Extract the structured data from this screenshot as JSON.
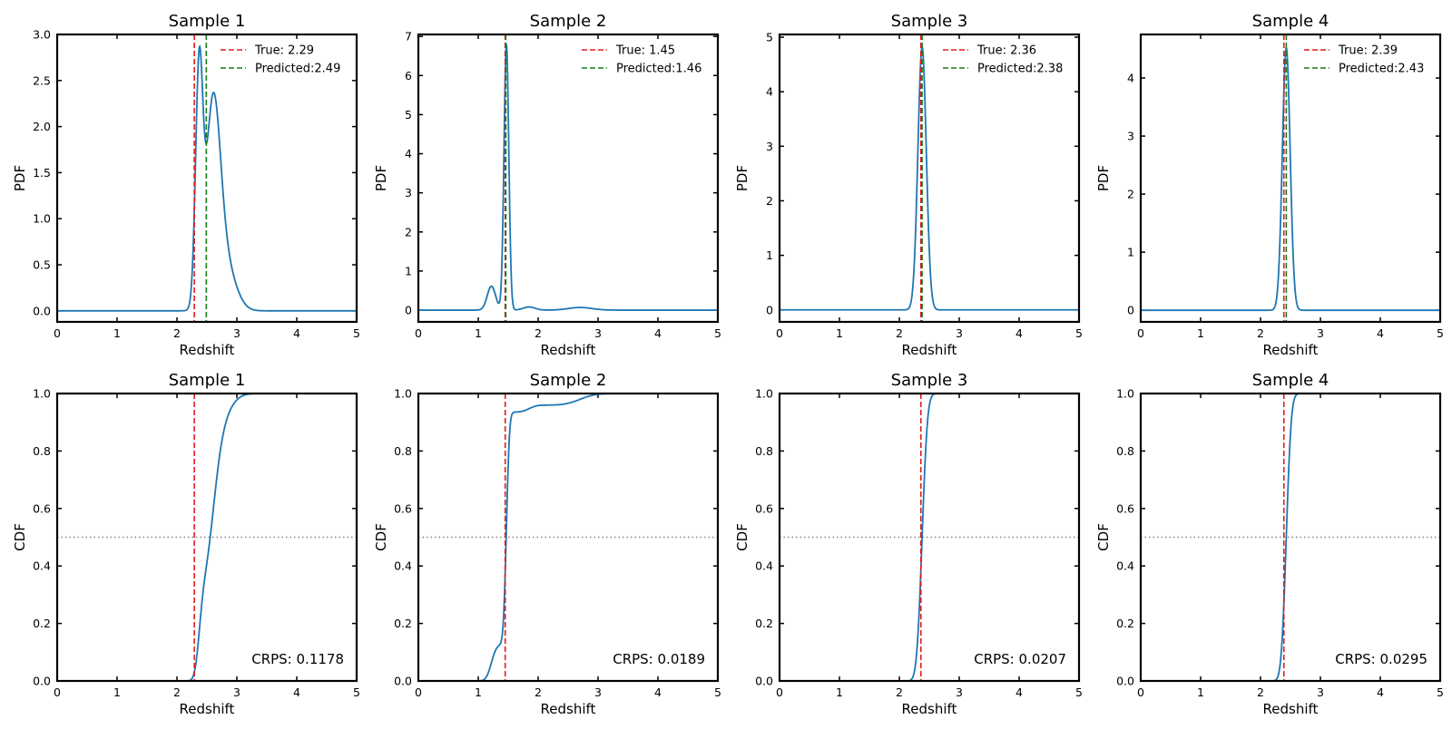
{
  "figure_title": "",
  "chart_data": [
    {
      "type": "line",
      "row": "pdf",
      "title": "Sample 1",
      "xlabel": "Redshift",
      "ylabel": "PDF",
      "xlim": [
        0,
        5
      ],
      "ylim": [
        -0.12,
        3.0
      ],
      "xticks": [
        0,
        1,
        2,
        3,
        4,
        5
      ],
      "yticks": [
        0.0,
        0.5,
        1.0,
        1.5,
        2.0,
        2.5,
        3.0
      ],
      "ytick_decimals": 1,
      "curve": {
        "components": [
          {
            "w": 0.55,
            "mu": 2.37,
            "sigma": 0.06
          },
          {
            "w": 0.45,
            "mu": 2.6,
            "sigma": 0.12
          },
          {
            "w": 0.12,
            "mu": 2.78,
            "sigma": 0.18
          }
        ],
        "peak": 2.87
      },
      "vlines": [
        {
          "x": 2.29,
          "color": "#e31a1c"
        },
        {
          "x": 2.49,
          "color": "#1a7d1a"
        }
      ],
      "legend": [
        {
          "label": "True: 2.29",
          "color": "#e31a1c"
        },
        {
          "label": "Predicted:2.49",
          "color": "#1a7d1a"
        }
      ],
      "series_color": "#1f77b4"
    },
    {
      "type": "line",
      "row": "pdf",
      "title": "Sample 2",
      "xlabel": "Redshift",
      "ylabel": "PDF",
      "xlim": [
        0,
        5
      ],
      "ylim": [
        -0.3,
        7.05
      ],
      "xticks": [
        0,
        1,
        2,
        3,
        4,
        5
      ],
      "yticks": [
        0,
        1,
        2,
        3,
        4,
        5,
        6,
        7
      ],
      "ytick_decimals": 0,
      "curve": {
        "components": [
          {
            "w": 1.0,
            "mu": 1.47,
            "sigma": 0.04
          },
          {
            "w": 0.09,
            "mu": 1.22,
            "sigma": 0.07
          },
          {
            "w": 0.012,
            "mu": 1.85,
            "sigma": 0.1
          },
          {
            "w": 0.01,
            "mu": 2.7,
            "sigma": 0.2
          }
        ],
        "peak": 6.8
      },
      "vlines": [
        {
          "x": 1.45,
          "color": "#e31a1c"
        },
        {
          "x": 1.46,
          "color": "#1a7d1a"
        }
      ],
      "legend": [
        {
          "label": "True: 1.45",
          "color": "#e31a1c"
        },
        {
          "label": "Predicted:1.46",
          "color": "#1a7d1a"
        }
      ],
      "series_color": "#1f77b4"
    },
    {
      "type": "line",
      "row": "pdf",
      "title": "Sample 3",
      "xlabel": "Redshift",
      "ylabel": "PDF",
      "xlim": [
        0,
        5
      ],
      "ylim": [
        -0.22,
        5.05
      ],
      "xticks": [
        0,
        1,
        2,
        3,
        4,
        5
      ],
      "yticks": [
        0,
        1,
        2,
        3,
        4,
        5
      ],
      "ytick_decimals": 0,
      "curve": {
        "components": [
          {
            "w": 1.0,
            "mu": 2.38,
            "sigma": 0.07
          }
        ],
        "peak": 4.82
      },
      "vlines": [
        {
          "x": 2.36,
          "color": "#e31a1c"
        },
        {
          "x": 2.38,
          "color": "#1a7d1a"
        }
      ],
      "legend": [
        {
          "label": "True: 2.36",
          "color": "#e31a1c"
        },
        {
          "label": "Predicted:2.38",
          "color": "#1a7d1a"
        }
      ],
      "series_color": "#1f77b4"
    },
    {
      "type": "line",
      "row": "pdf",
      "title": "Sample 4",
      "xlabel": "Redshift",
      "ylabel": "PDF",
      "xlim": [
        0,
        5
      ],
      "ylim": [
        -0.2,
        4.75
      ],
      "xticks": [
        0,
        1,
        2,
        3,
        4,
        5
      ],
      "yticks": [
        0,
        1,
        2,
        3,
        4
      ],
      "ytick_decimals": 0,
      "curve": {
        "components": [
          {
            "w": 1.0,
            "mu": 2.43,
            "sigma": 0.065
          }
        ],
        "peak": 4.52
      },
      "vlines": [
        {
          "x": 2.39,
          "color": "#e31a1c"
        },
        {
          "x": 2.43,
          "color": "#1a7d1a"
        }
      ],
      "legend": [
        {
          "label": "True: 2.39",
          "color": "#e31a1c"
        },
        {
          "label": "Predicted:2.43",
          "color": "#1a7d1a"
        }
      ],
      "series_color": "#1f77b4"
    },
    {
      "type": "line",
      "row": "cdf",
      "title": "Sample 1",
      "xlabel": "Redshift",
      "ylabel": "CDF",
      "xlim": [
        0,
        5
      ],
      "ylim": [
        0.0,
        1.0
      ],
      "xticks": [
        0,
        1,
        2,
        3,
        4,
        5
      ],
      "yticks": [
        0.0,
        0.2,
        0.4,
        0.6,
        0.8,
        1.0
      ],
      "ytick_decimals": 1,
      "curve": {
        "components": [
          {
            "w": 0.55,
            "mu": 2.37,
            "sigma": 0.06
          },
          {
            "w": 0.45,
            "mu": 2.6,
            "sigma": 0.12
          },
          {
            "w": 0.12,
            "mu": 2.78,
            "sigma": 0.18
          }
        ]
      },
      "vlines": [
        {
          "x": 2.29,
          "color": "#e31a1c"
        }
      ],
      "hline": {
        "y": 0.5,
        "color": "#808080"
      },
      "annotation": "CRPS: 0.1178",
      "series_color": "#1f77b4"
    },
    {
      "type": "line",
      "row": "cdf",
      "title": "Sample 2",
      "xlabel": "Redshift",
      "ylabel": "CDF",
      "xlim": [
        0,
        5
      ],
      "ylim": [
        0.0,
        1.0
      ],
      "xticks": [
        0,
        1,
        2,
        3,
        4,
        5
      ],
      "yticks": [
        0.0,
        0.2,
        0.4,
        0.6,
        0.8,
        1.0
      ],
      "ytick_decimals": 1,
      "curve": {
        "components": [
          {
            "w": 1.0,
            "mu": 1.47,
            "sigma": 0.04
          },
          {
            "w": 0.09,
            "mu": 1.22,
            "sigma": 0.07
          },
          {
            "w": 0.012,
            "mu": 1.85,
            "sigma": 0.1
          },
          {
            "w": 0.01,
            "mu": 2.7,
            "sigma": 0.2
          }
        ]
      },
      "vlines": [
        {
          "x": 1.45,
          "color": "#e31a1c"
        }
      ],
      "hline": {
        "y": 0.5,
        "color": "#808080"
      },
      "annotation": "CRPS: 0.0189",
      "series_color": "#1f77b4"
    },
    {
      "type": "line",
      "row": "cdf",
      "title": "Sample 3",
      "xlabel": "Redshift",
      "ylabel": "CDF",
      "xlim": [
        0,
        5
      ],
      "ylim": [
        0.0,
        1.0
      ],
      "xticks": [
        0,
        1,
        2,
        3,
        4,
        5
      ],
      "yticks": [
        0.0,
        0.2,
        0.4,
        0.6,
        0.8,
        1.0
      ],
      "ytick_decimals": 1,
      "curve": {
        "components": [
          {
            "w": 1.0,
            "mu": 2.38,
            "sigma": 0.07
          }
        ]
      },
      "vlines": [
        {
          "x": 2.36,
          "color": "#e31a1c"
        }
      ],
      "hline": {
        "y": 0.5,
        "color": "#808080"
      },
      "annotation": "CRPS: 0.0207",
      "series_color": "#1f77b4"
    },
    {
      "type": "line",
      "row": "cdf",
      "title": "Sample 4",
      "xlabel": "Redshift",
      "ylabel": "CDF",
      "xlim": [
        0,
        5
      ],
      "ylim": [
        0.0,
        1.0
      ],
      "xticks": [
        0,
        1,
        2,
        3,
        4,
        5
      ],
      "yticks": [
        0.0,
        0.2,
        0.4,
        0.6,
        0.8,
        1.0
      ],
      "ytick_decimals": 1,
      "curve": {
        "components": [
          {
            "w": 1.0,
            "mu": 2.43,
            "sigma": 0.065
          }
        ]
      },
      "vlines": [
        {
          "x": 2.39,
          "color": "#e31a1c"
        }
      ],
      "hline": {
        "y": 0.5,
        "color": "#808080"
      },
      "annotation": "CRPS: 0.0295",
      "series_color": "#1f77b4"
    }
  ]
}
